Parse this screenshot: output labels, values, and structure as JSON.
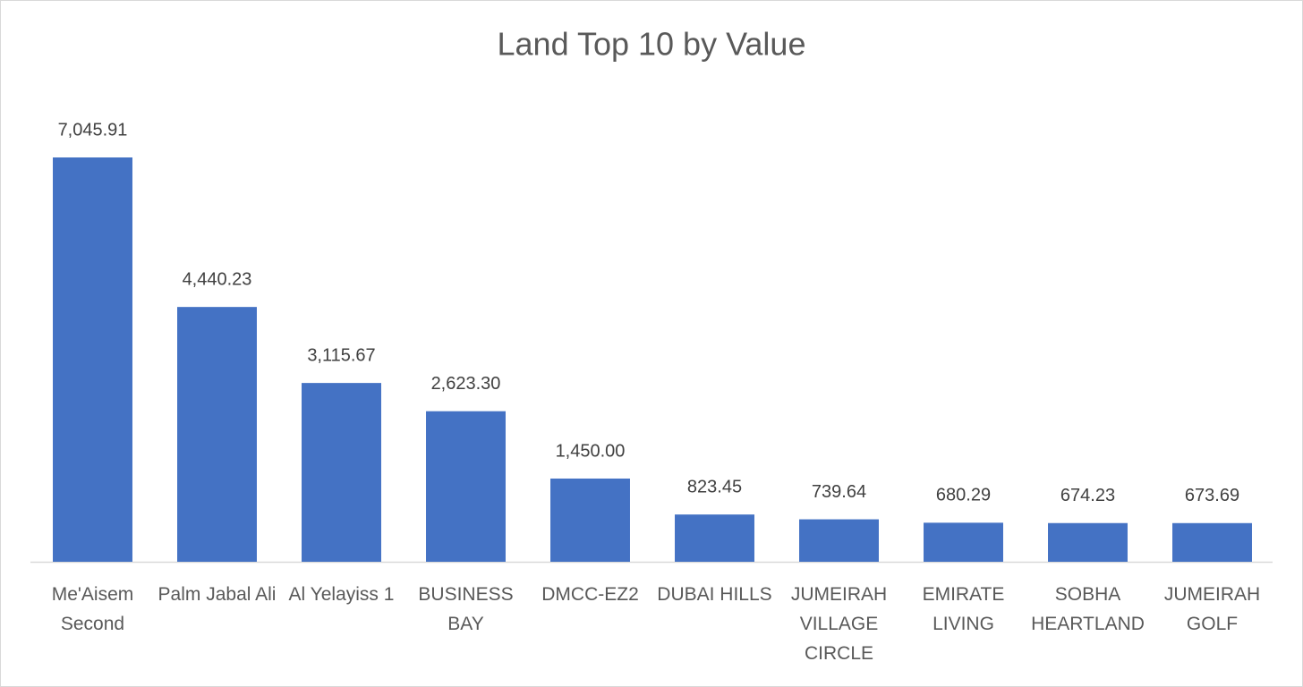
{
  "chart_data": {
    "type": "bar",
    "title": "Land Top 10 by Value",
    "categories": [
      "Me'Aisem Second",
      "Palm Jabal Ali",
      "Al Yelayiss 1",
      "BUSINESS BAY",
      "DMCC-EZ2",
      "DUBAI HILLS",
      "JUMEIRAH VILLAGE CIRCLE",
      "EMIRATE LIVING",
      "SOBHA HEARTLAND",
      "JUMEIRAH GOLF"
    ],
    "values": [
      7045.91,
      4440.23,
      3115.67,
      2623.3,
      1450.0,
      823.45,
      739.64,
      680.29,
      674.23,
      673.69
    ],
    "value_labels": [
      "7,045.91",
      "4,440.23",
      "3,115.67",
      "2,623.30",
      "1,450.00",
      "823.45",
      "739.64",
      "680.29",
      "674.23",
      "673.69"
    ],
    "color": "#4472c4"
  }
}
